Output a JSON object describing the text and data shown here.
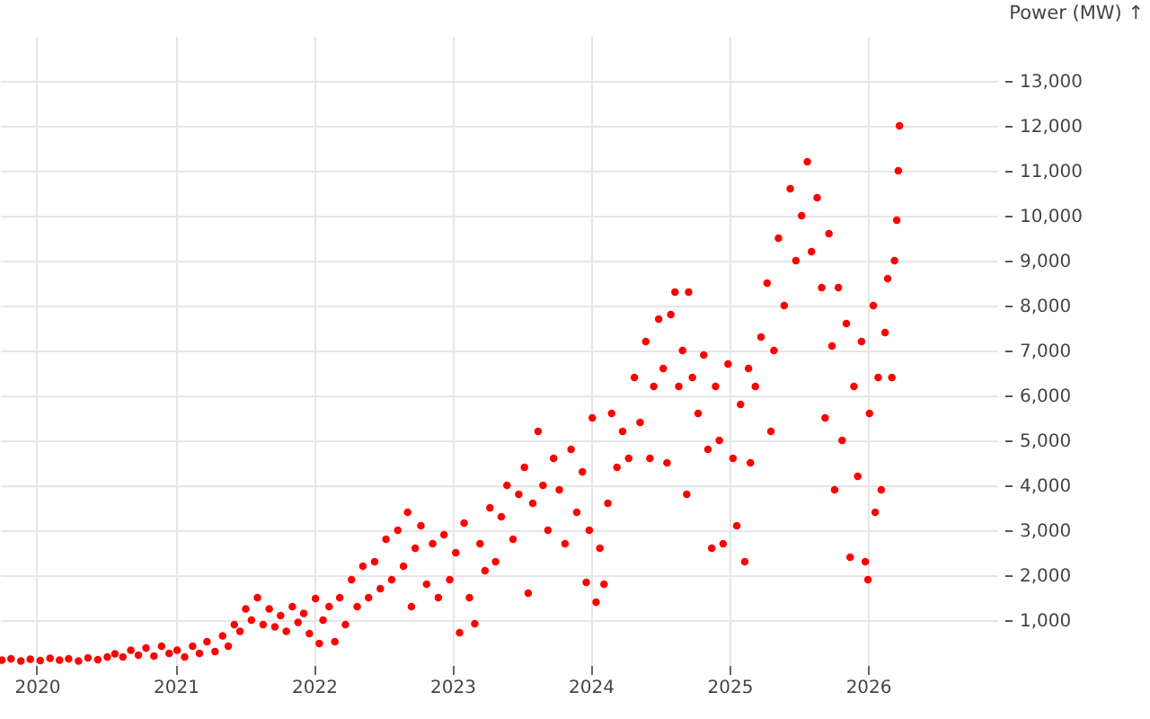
{
  "chart_data": {
    "type": "scatter",
    "ylabel": "Power (MW) ↑",
    "marker": "circle",
    "grid": true,
    "xlim": [
      "2019-09-26",
      "2026-12-08"
    ],
    "ylim": [
      0,
      14000
    ],
    "xticks": [
      "2020",
      "2021",
      "2022",
      "2023",
      "2024",
      "2025",
      "2026"
    ],
    "yticks": [
      {
        "value": 1000,
        "label": "1,000"
      },
      {
        "value": 2000,
        "label": "2,000"
      },
      {
        "value": 3000,
        "label": "3,000"
      },
      {
        "value": 4000,
        "label": "4,000"
      },
      {
        "value": 5000,
        "label": "5,000"
      },
      {
        "value": 6000,
        "label": "6,000"
      },
      {
        "value": 7000,
        "label": "7,000"
      },
      {
        "value": 8000,
        "label": "8,000"
      },
      {
        "value": 9000,
        "label": "9,000"
      },
      {
        "value": 10000,
        "label": "10,000"
      },
      {
        "value": 11000,
        "label": "11,000"
      },
      {
        "value": 12000,
        "label": "12,000"
      },
      {
        "value": 13000,
        "label": "13,000"
      }
    ],
    "x": [
      "2019-10-01",
      "2019-10-25",
      "2019-11-20",
      "2019-12-15",
      "2020-01-10",
      "2020-02-05",
      "2020-03-01",
      "2020-03-25",
      "2020-04-20",
      "2020-05-15",
      "2020-06-10",
      "2020-07-05",
      "2020-07-25",
      "2020-08-15",
      "2020-09-05",
      "2020-09-25",
      "2020-10-15",
      "2020-11-05",
      "2020-11-25",
      "2020-12-15",
      "2021-01-05",
      "2021-01-25",
      "2021-02-15",
      "2021-03-05",
      "2021-03-25",
      "2021-04-15",
      "2021-05-05",
      "2021-05-20",
      "2021-06-05",
      "2021-06-20",
      "2021-07-05",
      "2021-07-20",
      "2021-08-05",
      "2021-08-20",
      "2021-09-05",
      "2021-09-20",
      "2021-10-05",
      "2021-10-20",
      "2021-11-05",
      "2021-11-20",
      "2021-12-05",
      "2021-12-20",
      "2022-01-05",
      "2022-01-15",
      "2022-01-25",
      "2022-02-10",
      "2022-02-25",
      "2022-03-10",
      "2022-03-25",
      "2022-04-10",
      "2022-04-25",
      "2022-05-10",
      "2022-05-25",
      "2022-06-10",
      "2022-06-25",
      "2022-07-10",
      "2022-07-25",
      "2022-08-10",
      "2022-08-25",
      "2022-09-05",
      "2022-09-15",
      "2022-09-25",
      "2022-10-10",
      "2022-10-25",
      "2022-11-10",
      "2022-11-25",
      "2022-12-10",
      "2022-12-25",
      "2023-01-10",
      "2023-01-20",
      "2023-02-01",
      "2023-02-15",
      "2023-03-01",
      "2023-03-15",
      "2023-03-28",
      "2023-04-10",
      "2023-04-25",
      "2023-05-10",
      "2023-05-25",
      "2023-06-10",
      "2023-06-25",
      "2023-07-10",
      "2023-07-20",
      "2023-08-01",
      "2023-08-15",
      "2023-08-28",
      "2023-09-10",
      "2023-09-25",
      "2023-10-10",
      "2023-10-25",
      "2023-11-10",
      "2023-11-25",
      "2023-12-10",
      "2023-12-20",
      "2023-12-28",
      "2024-01-05",
      "2024-01-15",
      "2024-01-25",
      "2024-02-05",
      "2024-02-15",
      "2024-02-25",
      "2024-03-10",
      "2024-03-25",
      "2024-04-10",
      "2024-04-25",
      "2024-05-10",
      "2024-05-25",
      "2024-06-05",
      "2024-06-15",
      "2024-06-28",
      "2024-07-10",
      "2024-07-20",
      "2024-07-30",
      "2024-08-10",
      "2024-08-20",
      "2024-08-30",
      "2024-09-10",
      "2024-09-15",
      "2024-09-25",
      "2024-10-10",
      "2024-10-25",
      "2024-11-05",
      "2024-11-15",
      "2024-11-25",
      "2024-12-05",
      "2024-12-15",
      "2024-12-28",
      "2025-01-10",
      "2025-01-20",
      "2025-01-30",
      "2025-02-10",
      "2025-02-20",
      "2025-02-25",
      "2025-03-10",
      "2025-03-25",
      "2025-04-10",
      "2025-04-20",
      "2025-04-28",
      "2025-05-10",
      "2025-05-25",
      "2025-06-10",
      "2025-06-25",
      "2025-07-10",
      "2025-07-25",
      "2025-08-05",
      "2025-08-20",
      "2025-09-01",
      "2025-09-10",
      "2025-09-20",
      "2025-09-28",
      "2025-10-05",
      "2025-10-15",
      "2025-10-25",
      "2025-11-05",
      "2025-11-15",
      "2025-11-25",
      "2025-12-05",
      "2025-12-15",
      "2025-12-25",
      "2026-01-01",
      "2026-01-05",
      "2026-01-15",
      "2026-01-20",
      "2026-01-28",
      "2026-02-05",
      "2026-02-15",
      "2026-02-22",
      "2026-03-05",
      "2026-03-12",
      "2026-03-18",
      "2026-03-22",
      "2026-03-25"
    ],
    "series": [
      {
        "color": "#ff0000",
        "values": [
          110,
          140,
          90,
          130,
          100,
          150,
          110,
          140,
          90,
          160,
          120,
          180,
          250,
          180,
          330,
          220,
          380,
          200,
          420,
          260,
          330,
          180,
          420,
          260,
          520,
          300,
          650,
          420,
          900,
          750,
          1250,
          1000,
          1500,
          900,
          1250,
          850,
          1100,
          750,
          1300,
          950,
          1150,
          700,
          1480,
          480,
          1000,
          1300,
          520,
          1500,
          900,
          1900,
          1300,
          2200,
          1500,
          2300,
          1700,
          2800,
          1900,
          3000,
          2200,
          3400,
          1300,
          2600,
          3100,
          1800,
          2700,
          1500,
          2900,
          1900,
          2500,
          720,
          3160,
          1500,
          920,
          2700,
          2100,
          3500,
          2300,
          3300,
          4000,
          2800,
          3800,
          4400,
          1600,
          3600,
          5200,
          4000,
          3000,
          4600,
          3900,
          2700,
          4800,
          3400,
          4300,
          1840,
          3000,
          5500,
          1400,
          2600,
          1800,
          3600,
          5600,
          4400,
          5200,
          4600,
          6400,
          5400,
          7200,
          4600,
          6200,
          7700,
          6600,
          4500,
          7800,
          8300,
          6200,
          7000,
          3800,
          8300,
          6400,
          5600,
          6900,
          4800,
          2600,
          6200,
          5000,
          2700,
          6700,
          4600,
          3100,
          5800,
          2300,
          6600,
          4500,
          6200,
          7300,
          8500,
          5200,
          7000,
          9500,
          8000,
          10600,
          9000,
          10000,
          11200,
          9200,
          10400,
          8400,
          5500,
          9600,
          7100,
          3900,
          8400,
          5000,
          7600,
          2400,
          6200,
          4200,
          7200,
          2300,
          1900,
          5600,
          8000,
          3400,
          6400,
          3900,
          7400,
          8600,
          6400,
          9000,
          9900,
          11000,
          12000
        ]
      }
    ]
  }
}
